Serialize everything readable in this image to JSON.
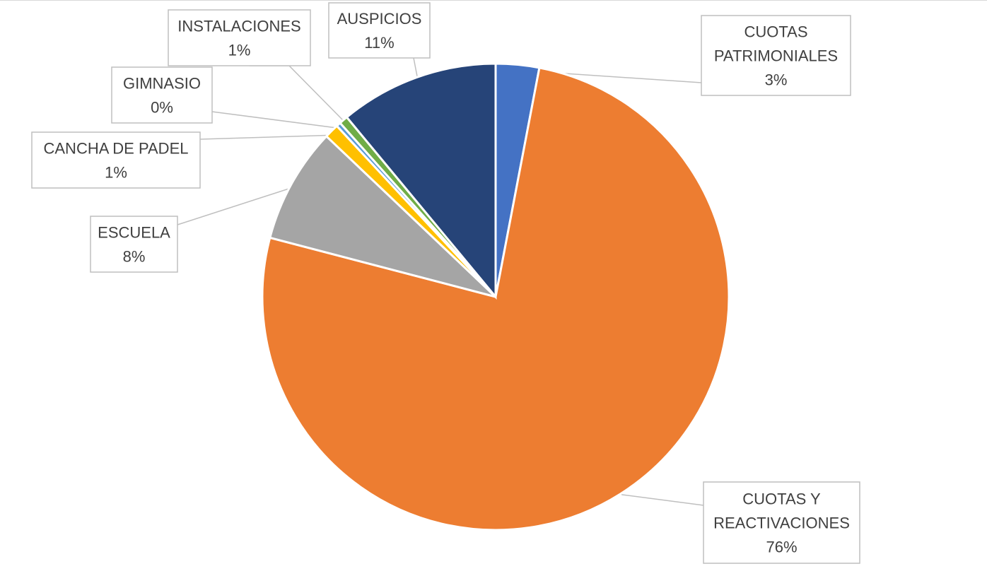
{
  "chart_data": {
    "type": "pie",
    "title": "",
    "legend": "none",
    "slices": [
      {
        "name": "CUOTAS PATRIMONIALES",
        "value": 3,
        "label": "3%",
        "color": "#4472C4"
      },
      {
        "name": "CUOTAS Y REACTIVACIONES",
        "value": 76,
        "label": "76%",
        "color": "#ED7D31"
      },
      {
        "name": "ESCUELA",
        "value": 8,
        "label": "8%",
        "color": "#A5A5A5"
      },
      {
        "name": "CANCHA DE PADEL",
        "value": 1,
        "label": "1%",
        "color": "#FFC000"
      },
      {
        "name": "GIMNASIO",
        "value": 0.3,
        "label": "0%",
        "color": "#5B9BD5"
      },
      {
        "name": "INSTALACIONES",
        "value": 0.6,
        "label": "1%",
        "color": "#70AD47"
      },
      {
        "name": "AUSPICIOS",
        "value": 11,
        "label": "11%",
        "color": "#264478"
      }
    ]
  }
}
